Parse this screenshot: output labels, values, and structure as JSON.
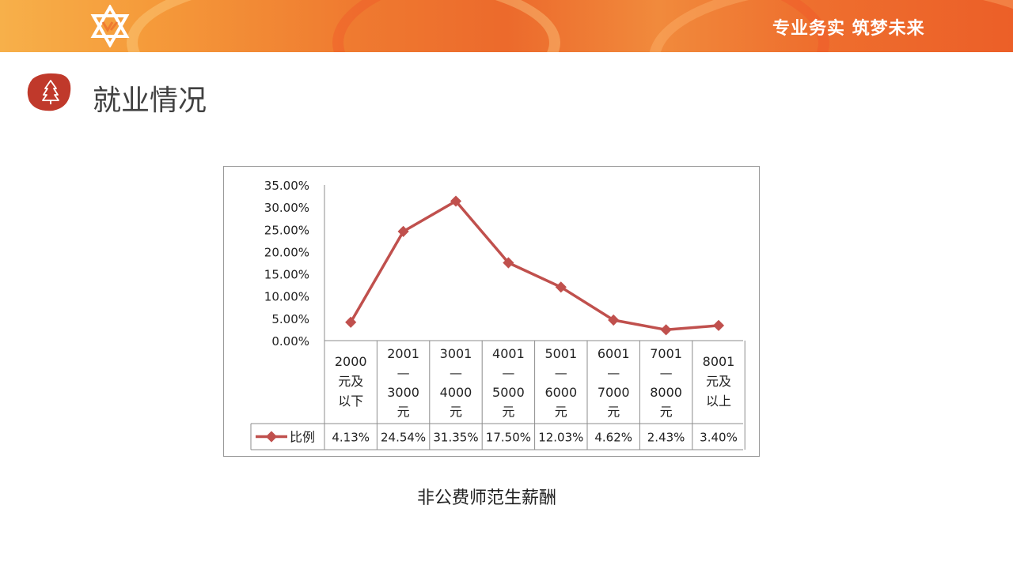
{
  "header": {
    "slogan": "专业务实 筑梦未来",
    "logo_icon": "star-logo-icon"
  },
  "section": {
    "title": "就业情况",
    "icon": "tree-icon",
    "accent_color": "#c0392b"
  },
  "chart_data": {
    "type": "line",
    "title": "",
    "xlabel": "",
    "ylabel": "",
    "ylim": [
      0,
      35
    ],
    "y_ticks": [
      "0.00%",
      "5.00%",
      "10.00%",
      "15.00%",
      "20.00%",
      "25.00%",
      "30.00%",
      "35.00%"
    ],
    "categories": [
      [
        "2000",
        "元及",
        "以下"
      ],
      [
        "2001",
        "—",
        "3000",
        "元"
      ],
      [
        "3001",
        "—",
        "4000",
        "元"
      ],
      [
        "4001",
        "—",
        "5000",
        "元"
      ],
      [
        "5001",
        "—",
        "6000",
        "元"
      ],
      [
        "6001",
        "—",
        "7000",
        "元"
      ],
      [
        "7001",
        "—",
        "8000",
        "元"
      ],
      [
        "8001",
        "元及",
        "以上"
      ]
    ],
    "series": [
      {
        "name": "比例",
        "color": "#c0504d",
        "values": [
          4.13,
          24.54,
          31.35,
          17.5,
          12.03,
          4.62,
          2.43,
          3.4
        ],
        "labels": [
          "4.13%",
          "24.54%",
          "31.35%",
          "17.50%",
          "12.03%",
          "4.62%",
          "2.43%",
          "3.40%"
        ]
      }
    ],
    "data_table": true,
    "grid": false
  },
  "caption": "非公费师范生薪酬"
}
